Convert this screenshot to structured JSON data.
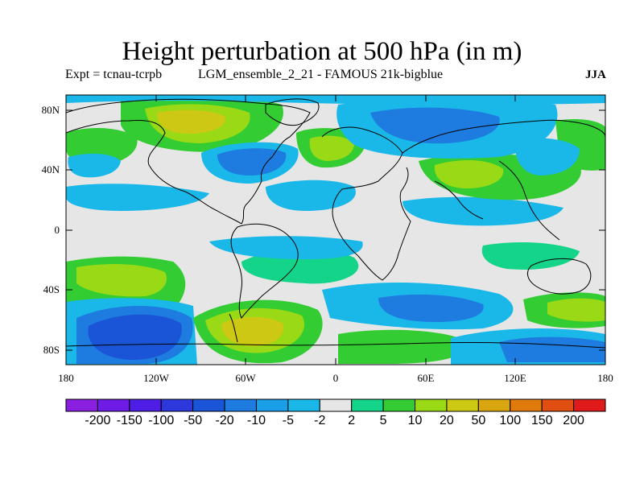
{
  "title": "Height perturbation at 500 hPa (in m)",
  "subtitle_left": "Expt = tcnau-tcrpb",
  "subtitle_center": "LGM_ensemble_2_21 - FAMOUS 21k-bigblue",
  "season": "JJA",
  "y_ticks": [
    "80N",
    "40N",
    "0",
    "40S",
    "80S"
  ],
  "x_ticks": [
    "180",
    "120W",
    "60W",
    "0",
    "60E",
    "120E",
    "180"
  ],
  "colorbar": {
    "labels": [
      "-200",
      "-150",
      "-100",
      "-50",
      "-20",
      "-10",
      "-5",
      "-2",
      "2",
      "5",
      "10",
      "20",
      "50",
      "100",
      "150",
      "200"
    ],
    "colors": [
      "#8a1fe0",
      "#6f1be6",
      "#4f1ee6",
      "#2d38dc",
      "#1a55d8",
      "#1e7be0",
      "#1a9ee8",
      "#1ab8e8",
      "#e6e6e6",
      "#14d48a",
      "#33cc33",
      "#99d915",
      "#ccc814",
      "#d9a60f",
      "#e07a0c",
      "#e04e12",
      "#e01a1a"
    ]
  },
  "map": {
    "lon_range": [
      -180,
      180
    ],
    "lat_range": [
      -90,
      90
    ],
    "background_color": "#e6e6e6"
  }
}
